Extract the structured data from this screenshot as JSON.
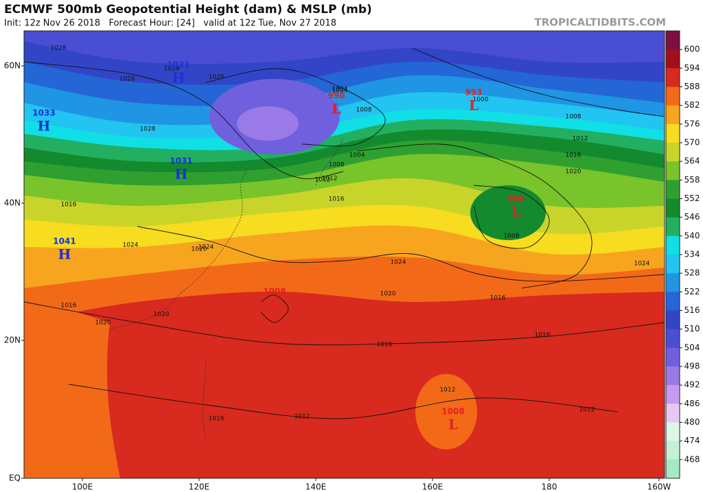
{
  "header": {
    "title": "ECMWF 500mb Geopotential Height (dam) & MSLP (mb)",
    "subtitle": "Init: 12z Nov 26 2018   Forecast Hour: [24]   valid at 12z Tue, Nov 27 2018",
    "watermark": "TROPICALTIDBITS.COM"
  },
  "map": {
    "lat_labels": [
      "60N",
      "40N",
      "20N",
      "EQ"
    ],
    "lon_labels": [
      "100E",
      "120E",
      "140E",
      "160E",
      "180",
      "160W"
    ],
    "centers": [
      {
        "kind": "H",
        "pressure": "1031"
      },
      {
        "kind": "H",
        "pressure": "1033"
      },
      {
        "kind": "H",
        "pressure": "1031"
      },
      {
        "kind": "H",
        "pressure": "1041"
      },
      {
        "kind": "L",
        "pressure": "990"
      },
      {
        "kind": "L",
        "pressure": "993"
      },
      {
        "kind": "L",
        "pressure": "996"
      },
      {
        "kind": "L",
        "pressure": "1008"
      },
      {
        "kind": "L",
        "pressure": "1008"
      }
    ],
    "isobar_labels": [
      "1028",
      "1028",
      "1028",
      "1024",
      "1020",
      "1016",
      "1012",
      "1008",
      "1004",
      "1000",
      "1004",
      "1008",
      "1012",
      "1016",
      "1020",
      "1024",
      "1008",
      "1016",
      "1020",
      "1024",
      "1016",
      "1020",
      "1016",
      "1016",
      "1012",
      "1012",
      "1012",
      "1016",
      "1024",
      "1020",
      "1012",
      "1008",
      "1004",
      "1016",
      "1024",
      "1020"
    ],
    "colorbar": {
      "ticks": [
        600,
        594,
        588,
        582,
        576,
        570,
        564,
        558,
        552,
        546,
        540,
        534,
        528,
        522,
        516,
        510,
        504,
        498,
        492,
        486,
        480,
        474,
        468
      ],
      "colors": [
        "#7d1040",
        "#a0101c",
        "#d82a1e",
        "#f26a18",
        "#f7a51f",
        "#f7dc1f",
        "#c8d42a",
        "#78c42a",
        "#2fa030",
        "#138a2e",
        "#22b060",
        "#10dfe6",
        "#22c4f2",
        "#1f95e4",
        "#2466d6",
        "#3245c7",
        "#4a4ed2",
        "#7060dd",
        "#9a7ae6",
        "#c69af0",
        "#e6c8f4",
        "#dcf6e8",
        "#c4f0d4",
        "#a4e8c4"
      ]
    }
  }
}
